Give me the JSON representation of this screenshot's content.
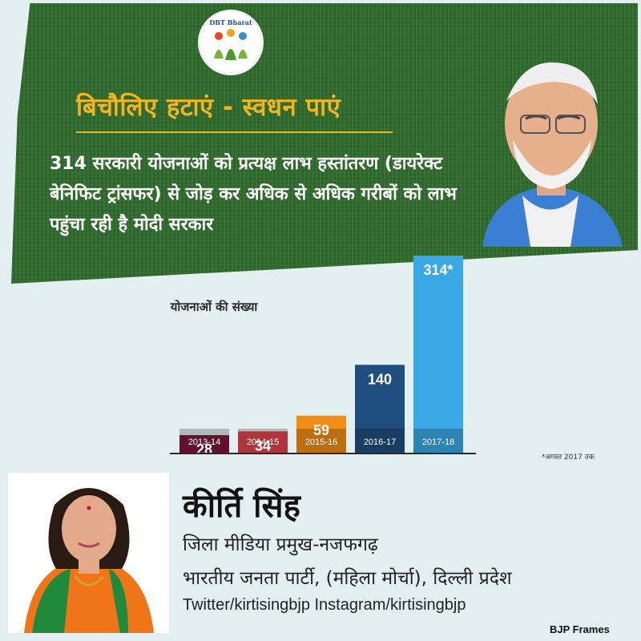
{
  "banner": {
    "logo_text": "DBT Bharat",
    "headline": "बिचौलिए हटाएं - स्वधन पाएं",
    "subtext": "314 सरकारी योजनाओं को प्रत्यक्ष लाभ हस्तांतरण (डायरेक्ट बेनिफिट ट्रांसफर) से जोड़ कर अधिक से अधिक गरीबों को लाभ पहुंचा रही है मोदी सरकार",
    "background_color": "#2f6a2c",
    "headline_color": "#f3b51f"
  },
  "chart_data": {
    "type": "bar",
    "ylabel": "योजनाओं की संख्या",
    "categories": [
      "2013-14",
      "2014-15",
      "2015-16",
      "2016-17",
      "2017-18"
    ],
    "values": [
      28,
      34,
      59,
      140,
      314
    ],
    "value_labels": [
      "28",
      "34",
      "59",
      "140",
      "314*"
    ],
    "colors": [
      "#7d1638",
      "#e0434c",
      "#f28e16",
      "#1f4e7e",
      "#3aa8e4"
    ],
    "footnote": "*अगस्त 2017 तक",
    "grid": false,
    "legend": "none"
  },
  "profile": {
    "name": "कीर्ति सिंह",
    "role": "जिला मीडिया प्रमुख-नजफगढ़",
    "party": "भारतीय जनता पार्टी, (महिला मोर्चा), दिल्ली प्रदेश",
    "social": "Twitter/kirtisingbjp Instagram/kirtisingbjp"
  },
  "credit": "BJP Frames"
}
